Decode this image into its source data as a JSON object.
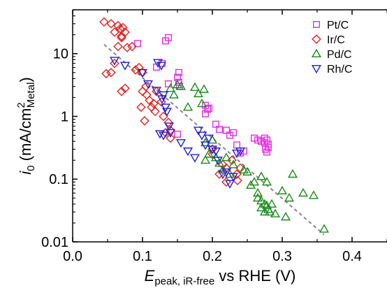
{
  "chart_data": {
    "type": "scatter",
    "xscale": "linear",
    "yscale": "log",
    "xlim": [
      0.0,
      0.45
    ],
    "ylim": [
      0.01,
      50
    ],
    "xticks": [
      0.0,
      0.1,
      0.2,
      0.3,
      0.4
    ],
    "xtick_labels": [
      "0.0",
      "0.1",
      "0.2",
      "0.3",
      "0.4"
    ],
    "yticks": [
      0.01,
      0.1,
      1,
      10
    ],
    "ytick_labels": [
      "0.01",
      "0.1",
      "1",
      "10"
    ],
    "xlabel": {
      "main": "E",
      "sub": "peak, iR-free",
      "rest": " vs RHE (V)"
    },
    "ylabel": {
      "main": "i",
      "sub": "0",
      "rest": " (mA/cm",
      "sup": "2",
      "sub2": "Metal",
      "close": ")"
    },
    "legend_position": "top-right",
    "series": [
      {
        "name": "Pt/C",
        "color": "#e62ee6",
        "marker": "square",
        "points": [
          [
            0.093,
            14.5
          ],
          [
            0.12,
            6.1
          ],
          [
            0.133,
            16.0
          ],
          [
            0.137,
            18.0
          ],
          [
            0.128,
            7.0
          ],
          [
            0.137,
            3.3
          ],
          [
            0.15,
            4.2
          ],
          [
            0.152,
            5.0
          ],
          [
            0.152,
            3.5
          ],
          [
            0.153,
            3.0
          ],
          [
            0.19,
            1.5
          ],
          [
            0.193,
            1.3
          ],
          [
            0.195,
            1.35
          ],
          [
            0.19,
            1.1
          ],
          [
            0.15,
            0.52
          ],
          [
            0.205,
            0.75
          ],
          [
            0.21,
            0.62
          ],
          [
            0.22,
            0.6
          ],
          [
            0.225,
            0.5
          ],
          [
            0.23,
            0.55
          ],
          [
            0.235,
            0.35
          ],
          [
            0.24,
            0.26
          ],
          [
            0.245,
            0.28
          ],
          [
            0.26,
            0.45
          ],
          [
            0.265,
            0.42
          ],
          [
            0.27,
            0.4
          ],
          [
            0.275,
            0.38
          ],
          [
            0.275,
            0.45
          ],
          [
            0.278,
            0.42
          ],
          [
            0.276,
            0.3
          ],
          [
            0.278,
            0.27
          ],
          [
            0.28,
            0.36
          ],
          [
            0.28,
            0.32
          ]
        ]
      },
      {
        "name": "Ir/C",
        "color": "#e62020",
        "marker": "diamond",
        "points": [
          [
            0.045,
            32.0
          ],
          [
            0.055,
            30.0
          ],
          [
            0.06,
            22.0
          ],
          [
            0.065,
            28.0
          ],
          [
            0.068,
            25.0
          ],
          [
            0.07,
            19.0
          ],
          [
            0.072,
            26.0
          ],
          [
            0.075,
            22.0
          ],
          [
            0.065,
            13.0
          ],
          [
            0.07,
            18.0
          ],
          [
            0.078,
            12.5
          ],
          [
            0.06,
            7.0
          ],
          [
            0.048,
            4.8
          ],
          [
            0.055,
            5.0
          ],
          [
            0.07,
            2.5
          ],
          [
            0.075,
            2.8
          ],
          [
            0.085,
            13.0
          ],
          [
            0.09,
            5.5
          ],
          [
            0.095,
            6.0
          ],
          [
            0.1,
            5.0
          ],
          [
            0.1,
            2.5
          ],
          [
            0.105,
            3.0
          ],
          [
            0.098,
            1.4
          ],
          [
            0.103,
            0.85
          ],
          [
            0.106,
            2.2
          ],
          [
            0.11,
            1.8
          ],
          [
            0.113,
            1.4
          ],
          [
            0.116,
            1.6
          ],
          [
            0.118,
            1.2
          ],
          [
            0.12,
            2.5
          ],
          [
            0.127,
            1.7
          ],
          [
            0.13,
            1.0
          ],
          [
            0.137,
            0.8
          ],
          [
            0.133,
            0.55
          ],
          [
            0.14,
            0.6
          ],
          [
            0.14,
            0.45
          ],
          [
            0.2,
            0.25
          ],
          [
            0.2,
            0.3
          ],
          [
            0.21,
            0.12
          ],
          [
            0.215,
            0.17
          ],
          [
            0.22,
            0.15
          ],
          [
            0.22,
            0.09
          ],
          [
            0.228,
            0.2
          ],
          [
            0.235,
            0.12
          ],
          [
            0.24,
            0.15
          ],
          [
            0.236,
            0.095
          ]
        ]
      },
      {
        "name": "Pd/C",
        "color": "#1a8a1a",
        "marker": "triangle-up",
        "points": [
          [
            0.14,
            2.8
          ],
          [
            0.145,
            2.2
          ],
          [
            0.15,
            3.2
          ],
          [
            0.155,
            3.0
          ],
          [
            0.165,
            1.4
          ],
          [
            0.175,
            2.9
          ],
          [
            0.18,
            2.3
          ],
          [
            0.185,
            1.6
          ],
          [
            0.188,
            2.7
          ],
          [
            0.19,
            0.2
          ],
          [
            0.19,
            0.38
          ],
          [
            0.195,
            0.25
          ],
          [
            0.2,
            0.42
          ],
          [
            0.205,
            0.22
          ],
          [
            0.21,
            0.18
          ],
          [
            0.215,
            0.14
          ],
          [
            0.22,
            0.22
          ],
          [
            0.225,
            0.12
          ],
          [
            0.23,
            0.17
          ],
          [
            0.245,
            0.14
          ],
          [
            0.25,
            0.13
          ],
          [
            0.255,
            0.08
          ],
          [
            0.26,
            0.09
          ],
          [
            0.265,
            0.06
          ],
          [
            0.265,
            0.05
          ],
          [
            0.27,
            0.045
          ],
          [
            0.27,
            0.035
          ],
          [
            0.275,
            0.04
          ],
          [
            0.275,
            0.03
          ],
          [
            0.278,
            0.038
          ],
          [
            0.28,
            0.033
          ],
          [
            0.282,
            0.03
          ],
          [
            0.285,
            0.04
          ],
          [
            0.29,
            0.028
          ],
          [
            0.3,
            0.065
          ],
          [
            0.305,
            0.025
          ],
          [
            0.31,
            0.05
          ],
          [
            0.315,
            0.12
          ],
          [
            0.33,
            0.06
          ],
          [
            0.345,
            0.055
          ],
          [
            0.36,
            0.016
          ],
          [
            0.27,
            0.11
          ],
          [
            0.278,
            0.09
          ]
        ]
      },
      {
        "name": "Rh/C",
        "color": "#1f1fd6",
        "marker": "triangle-down",
        "points": [
          [
            0.06,
            7.8
          ],
          [
            0.075,
            6.5
          ],
          [
            0.1,
            5.0
          ],
          [
            0.108,
            3.3
          ],
          [
            0.122,
            7.2
          ],
          [
            0.127,
            6.5
          ],
          [
            0.12,
            2.6
          ],
          [
            0.13,
            2.2
          ],
          [
            0.128,
            1.9
          ],
          [
            0.133,
            1.4
          ],
          [
            0.135,
            1.2
          ],
          [
            0.138,
            0.7
          ],
          [
            0.125,
            0.53
          ],
          [
            0.13,
            0.5
          ],
          [
            0.14,
            0.55
          ],
          [
            0.155,
            0.38
          ],
          [
            0.165,
            0.28
          ],
          [
            0.175,
            0.22
          ],
          [
            0.18,
            0.6
          ],
          [
            0.185,
            0.5
          ],
          [
            0.19,
            0.35
          ],
          [
            0.195,
            0.45
          ],
          [
            0.2,
            0.3
          ],
          [
            0.205,
            0.28
          ],
          [
            0.208,
            0.2
          ],
          [
            0.215,
            0.12
          ],
          [
            0.22,
            0.13
          ],
          [
            0.23,
            0.11
          ],
          [
            0.235,
            0.26
          ],
          [
            0.24,
            0.28
          ],
          [
            0.225,
            0.085
          ]
        ]
      }
    ],
    "fit_line": {
      "style": "dashed",
      "color": "#888888",
      "from": [
        0.045,
        14.0
      ],
      "to": [
        0.36,
        0.013
      ]
    }
  }
}
